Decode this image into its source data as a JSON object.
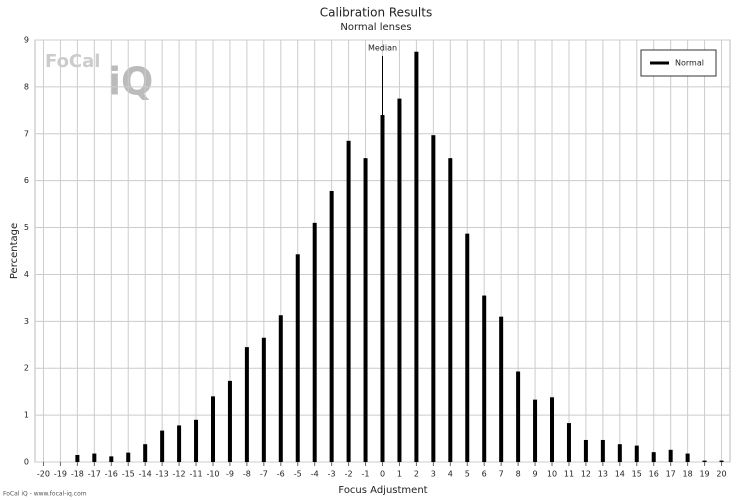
{
  "chart_data": {
    "type": "bar",
    "title": "Calibration Results",
    "subtitle": "Normal lenses",
    "x_label": "Focus Adjustment",
    "y_label": "Percentage",
    "x": [
      -20,
      -19,
      -18,
      -17,
      -16,
      -15,
      -14,
      -13,
      -12,
      -11,
      -10,
      -9,
      -8,
      -7,
      -6,
      -5,
      -4,
      -3,
      -2,
      -1,
      0,
      1,
      2,
      3,
      4,
      5,
      6,
      7,
      8,
      9,
      10,
      11,
      12,
      13,
      14,
      15,
      16,
      17,
      18,
      19,
      20
    ],
    "series": [
      {
        "name": "Normal",
        "color": "#000000",
        "values": [
          0,
          0,
          0.15,
          0.18,
          0.12,
          0.2,
          0.38,
          0.67,
          0.78,
          0.9,
          1.4,
          1.73,
          2.45,
          2.65,
          3.13,
          4.43,
          5.1,
          5.78,
          6.85,
          6.48,
          7.4,
          7.75,
          8.75,
          6.97,
          6.48,
          4.87,
          3.55,
          3.1,
          1.93,
          1.33,
          1.38,
          0.83,
          0.47,
          0.47,
          0.38,
          0.35,
          0.21,
          0.26,
          0.18,
          0.03,
          0.03
        ]
      }
    ],
    "xlim": [
      -20.5,
      20.5
    ],
    "xticks": [
      -20,
      -19,
      -18,
      -17,
      -16,
      -15,
      -14,
      -13,
      -12,
      -11,
      -10,
      -9,
      -8,
      -7,
      -6,
      -5,
      -4,
      -3,
      -2,
      -1,
      0,
      1,
      2,
      3,
      4,
      5,
      6,
      7,
      8,
      9,
      10,
      11,
      12,
      13,
      14,
      15,
      16,
      17,
      18,
      19,
      20
    ],
    "ylim": [
      0,
      9
    ],
    "yticks": [
      0,
      1,
      2,
      3,
      4,
      5,
      6,
      7,
      8,
      9
    ],
    "grid": true,
    "legend": "top-right",
    "annotations": [
      {
        "x": 0,
        "label": "Median"
      }
    ]
  },
  "logo": {
    "brand": "FoCal",
    "mark": "iQ"
  },
  "footer": "FoCal iQ - www.focal-iq.com"
}
